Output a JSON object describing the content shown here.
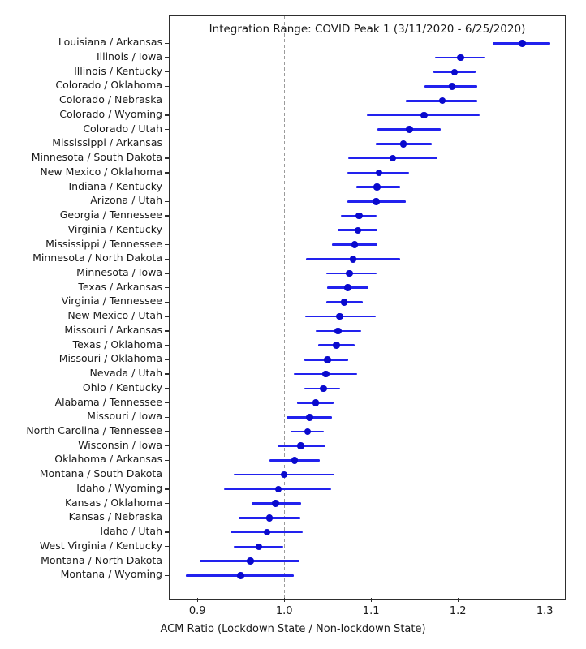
{
  "chart_data": {
    "type": "scatter",
    "title": "Integration Range: COVID Peak 1 (3/11/2020 - 6/25/2020)",
    "xlabel": "ACM Ratio (Lockdown State / Non-lockdown State)",
    "ylabel": "",
    "xlim": [
      0.868,
      1.325
    ],
    "x_ticks": [
      0.9,
      1.0,
      1.1,
      1.2,
      1.3
    ],
    "reference_line": 1.0,
    "grid": false,
    "legend_position": "none",
    "colors": {
      "point": "#0a0acd",
      "error_bar": "#2222ee",
      "reference_line": "#9b9b9b",
      "text": "#1a1a1a",
      "frame": "#2e2e2e"
    },
    "rows": [
      {
        "label": "Louisiana / Arkansas",
        "value": 1.274,
        "lo": 1.24,
        "hi": 1.306
      },
      {
        "label": "Illinois / Iowa",
        "value": 1.203,
        "lo": 1.174,
        "hi": 1.231
      },
      {
        "label": "Illinois / Kentucky",
        "value": 1.196,
        "lo": 1.172,
        "hi": 1.22
      },
      {
        "label": "Colorado / Oklahoma",
        "value": 1.193,
        "lo": 1.161,
        "hi": 1.222
      },
      {
        "label": "Colorado / Nebraska",
        "value": 1.182,
        "lo": 1.14,
        "hi": 1.222
      },
      {
        "label": "Colorado / Wyoming",
        "value": 1.161,
        "lo": 1.095,
        "hi": 1.225
      },
      {
        "label": "Colorado / Utah",
        "value": 1.144,
        "lo": 1.107,
        "hi": 1.18
      },
      {
        "label": "Mississippi / Arkansas",
        "value": 1.137,
        "lo": 1.105,
        "hi": 1.17
      },
      {
        "label": "Minnesota / South Dakota",
        "value": 1.125,
        "lo": 1.074,
        "hi": 1.176
      },
      {
        "label": "New Mexico / Oklahoma",
        "value": 1.109,
        "lo": 1.073,
        "hi": 1.144
      },
      {
        "label": "Indiana / Kentucky",
        "value": 1.107,
        "lo": 1.083,
        "hi": 1.133
      },
      {
        "label": "Arizona / Utah",
        "value": 1.106,
        "lo": 1.073,
        "hi": 1.14
      },
      {
        "label": "Georgia / Tennessee",
        "value": 1.086,
        "lo": 1.065,
        "hi": 1.106
      },
      {
        "label": "Virginia / Kentucky",
        "value": 1.085,
        "lo": 1.061,
        "hi": 1.107
      },
      {
        "label": "Mississippi / Tennessee",
        "value": 1.081,
        "lo": 1.055,
        "hi": 1.107
      },
      {
        "label": "Minnesota / North Dakota",
        "value": 1.079,
        "lo": 1.025,
        "hi": 1.133
      },
      {
        "label": "Minnesota / Iowa",
        "value": 1.075,
        "lo": 1.048,
        "hi": 1.106
      },
      {
        "label": "Texas / Arkansas",
        "value": 1.073,
        "lo": 1.049,
        "hi": 1.097
      },
      {
        "label": "Virginia / Tennessee",
        "value": 1.069,
        "lo": 1.048,
        "hi": 1.09
      },
      {
        "label": "New Mexico / Utah",
        "value": 1.064,
        "lo": 1.024,
        "hi": 1.105
      },
      {
        "label": "Missouri / Arkansas",
        "value": 1.062,
        "lo": 1.036,
        "hi": 1.089
      },
      {
        "label": "Texas / Oklahoma",
        "value": 1.06,
        "lo": 1.039,
        "hi": 1.081
      },
      {
        "label": "Missouri / Oklahoma",
        "value": 1.05,
        "lo": 1.023,
        "hi": 1.074
      },
      {
        "label": "Nevada / Utah",
        "value": 1.048,
        "lo": 1.011,
        "hi": 1.084
      },
      {
        "label": "Ohio / Kentucky",
        "value": 1.045,
        "lo": 1.023,
        "hi": 1.064
      },
      {
        "label": "Alabama / Tennessee",
        "value": 1.036,
        "lo": 1.015,
        "hi": 1.057
      },
      {
        "label": "Missouri / Iowa",
        "value": 1.029,
        "lo": 1.003,
        "hi": 1.055
      },
      {
        "label": "North Carolina / Tennessee",
        "value": 1.027,
        "lo": 1.007,
        "hi": 1.046
      },
      {
        "label": "Wisconsin / Iowa",
        "value": 1.019,
        "lo": 0.992,
        "hi": 1.047
      },
      {
        "label": "Oklahoma / Arkansas",
        "value": 1.012,
        "lo": 0.983,
        "hi": 1.041
      },
      {
        "label": "Montana / South Dakota",
        "value": 1.0,
        "lo": 0.942,
        "hi": 1.058
      },
      {
        "label": "Idaho / Wyoming",
        "value": 0.993,
        "lo": 0.931,
        "hi": 1.054
      },
      {
        "label": "Kansas / Oklahoma",
        "value": 0.99,
        "lo": 0.962,
        "hi": 1.019
      },
      {
        "label": "Kansas / Nebraska",
        "value": 0.983,
        "lo": 0.947,
        "hi": 1.018
      },
      {
        "label": "Idaho / Utah",
        "value": 0.98,
        "lo": 0.938,
        "hi": 1.021
      },
      {
        "label": "West Virginia / Kentucky",
        "value": 0.971,
        "lo": 0.942,
        "hi": 0.999
      },
      {
        "label": "Montana / North Dakota",
        "value": 0.961,
        "lo": 0.903,
        "hi": 1.018
      },
      {
        "label": "Montana / Wyoming",
        "value": 0.95,
        "lo": 0.887,
        "hi": 1.011
      }
    ]
  }
}
